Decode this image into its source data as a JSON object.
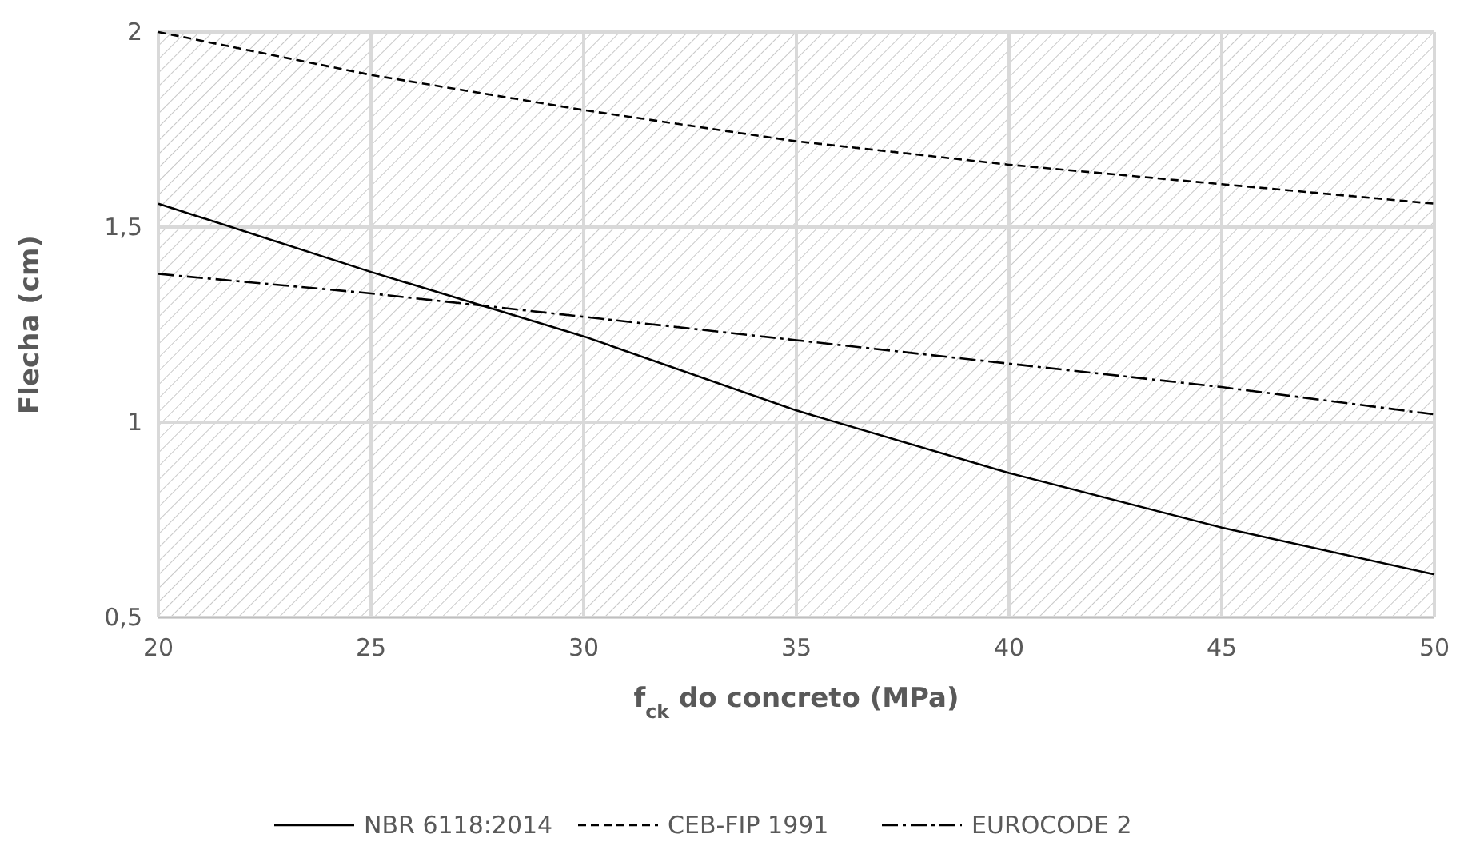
{
  "chart_data": {
    "type": "line",
    "xlabel": "f$_{ck}$ do concreto (MPa)",
    "ylabel": "Flecha (cm)",
    "x": [
      20,
      25,
      30,
      35,
      40,
      45,
      50
    ],
    "series": [
      {
        "name": "NBR 6118:2014",
        "color": "#000000",
        "line_style": "solid",
        "values": [
          1.56,
          1.385,
          1.22,
          1.03,
          0.87,
          0.73,
          0.61
        ]
      },
      {
        "name": "CEB-FIP 1991",
        "color": "#000000",
        "line_style": "dashed",
        "values": [
          2.0,
          1.89,
          1.8,
          1.72,
          1.66,
          1.61,
          1.56
        ]
      },
      {
        "name": "EUROCODE 2",
        "color": "#000000",
        "line_style": "dashdot",
        "values": [
          1.38,
          1.33,
          1.27,
          1.21,
          1.15,
          1.09,
          1.02
        ]
      }
    ],
    "xlim": [
      20,
      50
    ],
    "xticks": [
      20,
      25,
      30,
      35,
      40,
      45,
      50
    ],
    "ylim": [
      0.5,
      2
    ],
    "yticks": [
      {
        "value": 0.5,
        "label": "0,5"
      },
      1,
      {
        "value": 1.5,
        "label": "1,5"
      },
      2
    ],
    "grid": true,
    "legend": "bottom"
  }
}
